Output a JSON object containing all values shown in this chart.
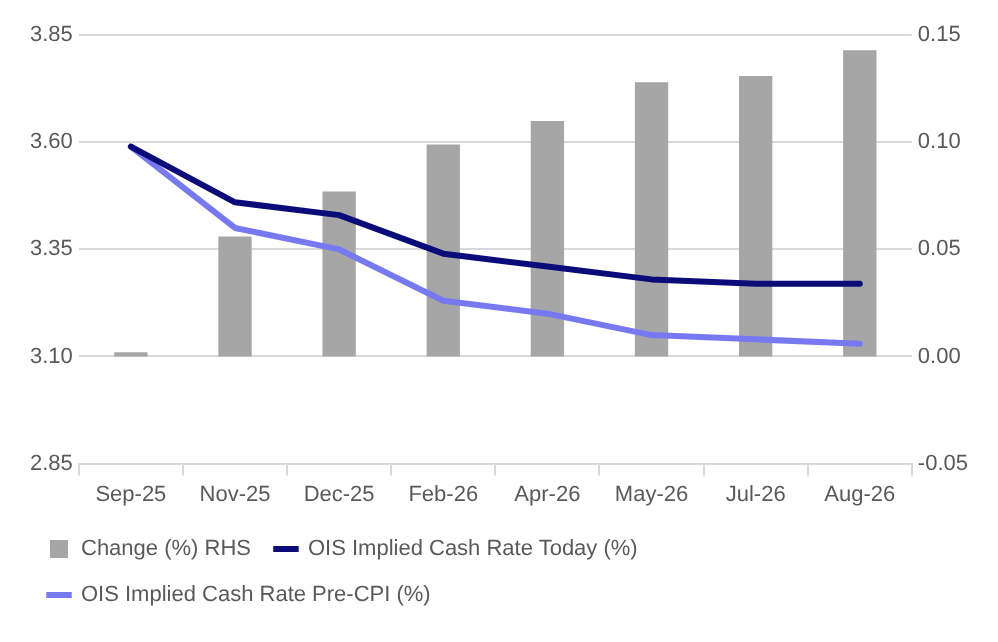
{
  "chart_data": {
    "type": "bar",
    "categories": [
      "Sep-25",
      "Nov-25",
      "Dec-25",
      "Feb-26",
      "Apr-26",
      "May-26",
      "Jul-26",
      "Aug-26"
    ],
    "series": [
      {
        "name": "Change (%) RHS",
        "axis": "y2",
        "color": "#a6a6a6",
        "values": [
          0.002,
          0.056,
          0.077,
          0.099,
          0.11,
          0.128,
          0.131,
          0.143
        ]
      },
      {
        "name": "OIS Implied Cash Rate Today (%)",
        "type": "line",
        "color": "#0b0b7a",
        "values": [
          3.59,
          3.46,
          3.43,
          3.34,
          3.31,
          3.28,
          3.27,
          3.27
        ]
      },
      {
        "name": "OIS Implied Cash Rate Pre-CPI (%)",
        "type": "line",
        "color": "#7878f0",
        "values": [
          3.59,
          3.4,
          3.35,
          3.23,
          3.2,
          3.15,
          3.14,
          3.13
        ]
      }
    ],
    "ylim": [
      2.85,
      3.85
    ],
    "yticks": [
      2.85,
      {
        "value": 3.1,
        "label": "3.10"
      },
      3.35,
      {
        "value": 3.6,
        "label": "3.60"
      },
      3.85
    ],
    "y2lim": [
      -0.05,
      0.15
    ],
    "y2ticks": [
      -0.05,
      {
        "value": 0,
        "label": "0.00"
      },
      0.05,
      {
        "value": 0.1,
        "label": "0.10"
      },
      0.15
    ],
    "grid": "y",
    "legend": "bottom",
    "marker": "none",
    "line_style": "solid"
  }
}
